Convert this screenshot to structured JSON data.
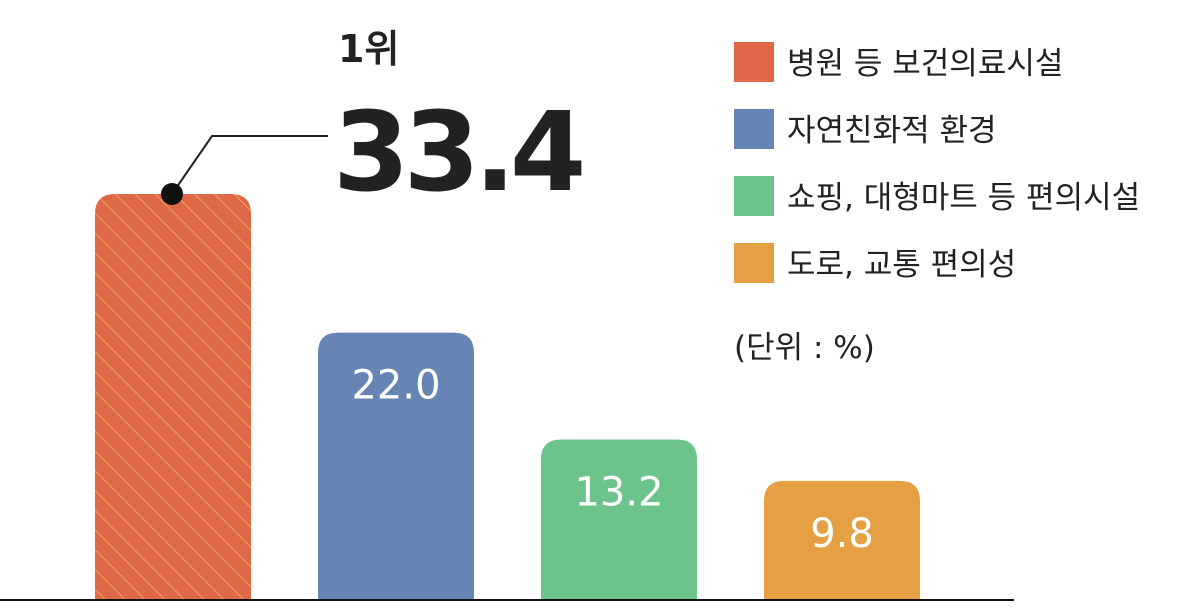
{
  "chart_data": {
    "type": "bar",
    "categories": [
      "병원 등 보건의료시설",
      "자연친화적 환경",
      "쇼핑, 대형마트 등 편의시설",
      "도로, 교통 편의성"
    ],
    "values": [
      33.4,
      22.0,
      13.2,
      9.8
    ],
    "value_labels": [
      "33.4",
      "22.0",
      "13.2",
      "9.8"
    ],
    "colors": [
      "#df6848",
      "#6685b5",
      "#6cc38b",
      "#e5a044"
    ],
    "highlight": {
      "rank_label": "1위",
      "value_label": "33.4",
      "index": 0
    },
    "unit_note": "(단위 : %)",
    "legend_position": "top-right",
    "ylim": [
      0,
      40
    ],
    "grid": false
  }
}
